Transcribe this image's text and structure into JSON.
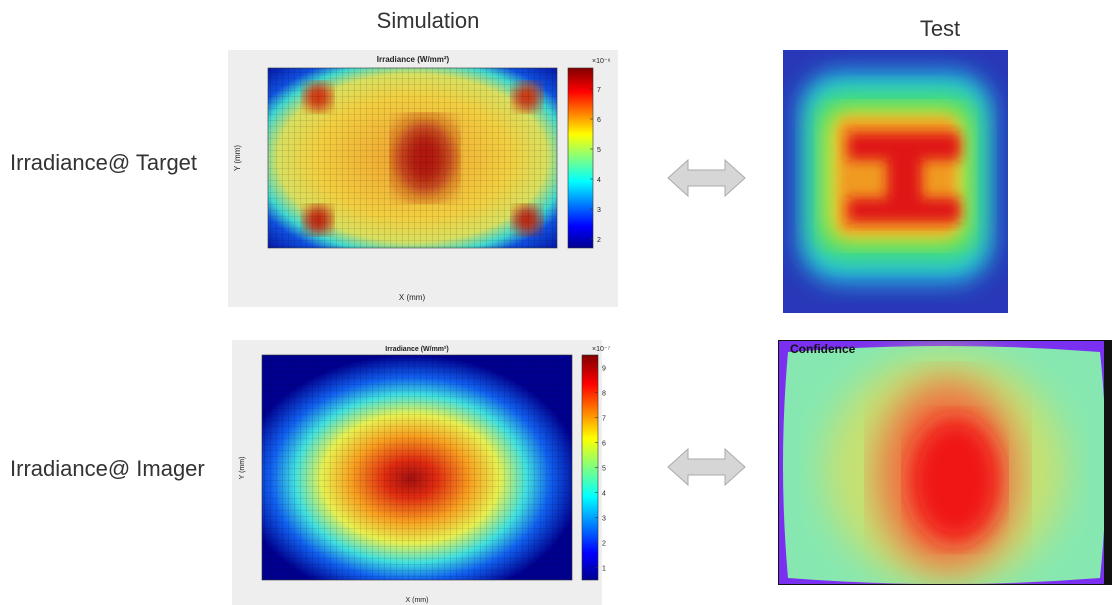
{
  "header": {
    "columns": [
      "Simulation",
      "Test"
    ]
  },
  "rows": [
    {
      "label": "Irradiance@ Target",
      "simulation": {
        "title": "Irradiance (W/mm²)",
        "x_label": "X (mm)",
        "y_label": "Y (mm)",
        "colorbar_scale": "×10⁻⁶",
        "colorbar_ticks": [
          2,
          3,
          4,
          5,
          6,
          7
        ]
      }
    },
    {
      "label": "Irradiance@ Imager",
      "simulation": {
        "title": "Irradiance (W/mm²)",
        "x_label": "X (mm)",
        "y_label": "Y (mm)",
        "colorbar_scale": "×10⁻⁷",
        "colorbar_ticks": [
          1,
          2,
          3,
          4,
          5,
          6,
          7,
          8,
          9
        ]
      },
      "test": {
        "label": "Confidence"
      }
    }
  ]
}
